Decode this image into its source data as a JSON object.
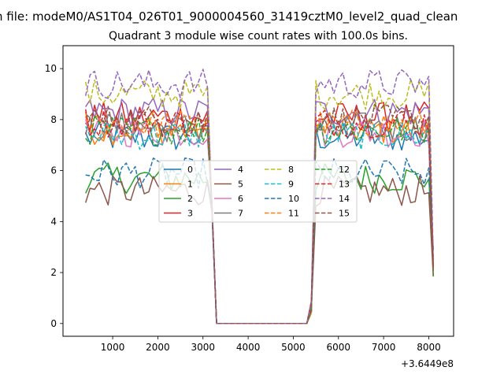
{
  "figure": {
    "suptitle": "n file: modeM0/AS1T04_026T01_9000004560_31419cztM0_level2_quad_clean"
  },
  "chart_data": {
    "type": "line",
    "title": "Quadrant 3 module wise count rates with 100.0s bins.",
    "xlabel": "",
    "ylabel": "",
    "x_offset_label": "+3.6449e8",
    "xlim": [
      -100,
      8550
    ],
    "ylim": [
      -0.5,
      10.9
    ],
    "xticks": [
      1000,
      2000,
      3000,
      4000,
      5000,
      6000,
      7000,
      8000
    ],
    "yticks": [
      0,
      2,
      4,
      6,
      8,
      10
    ],
    "grid": false,
    "legend_placement": "center",
    "legend_columns": 4,
    "series": [
      {
        "name": "0",
        "color": "#1f77b4",
        "style": "solid",
        "base": 7.3
      },
      {
        "name": "1",
        "color": "#ff7f0e",
        "style": "solid",
        "base": 7.6
      },
      {
        "name": "2",
        "color": "#2ca02c",
        "style": "solid",
        "base": 5.7
      },
      {
        "name": "3",
        "color": "#d62728",
        "style": "solid",
        "base": 8.1
      },
      {
        "name": "4",
        "color": "#9467bd",
        "style": "solid",
        "base": 8.3
      },
      {
        "name": "5",
        "color": "#8c564b",
        "style": "solid",
        "base": 5.2
      },
      {
        "name": "6",
        "color": "#e377c2",
        "style": "solid",
        "base": 7.5
      },
      {
        "name": "7",
        "color": "#7f7f7f",
        "style": "solid",
        "base": 7.7
      },
      {
        "name": "8",
        "color": "#bcbd22",
        "style": "dashed",
        "base": 9.0
      },
      {
        "name": "9",
        "color": "#17becf",
        "style": "dashed",
        "base": 7.4
      },
      {
        "name": "10",
        "color": "#1f77b4",
        "style": "dashed",
        "base": 5.9
      },
      {
        "name": "11",
        "color": "#ff7f0e",
        "style": "dashed",
        "base": 7.8
      },
      {
        "name": "12",
        "color": "#2ca02c",
        "style": "dashed",
        "base": 7.6
      },
      {
        "name": "13",
        "color": "#d62728",
        "style": "dashed",
        "base": 7.9
      },
      {
        "name": "14",
        "color": "#9467bd",
        "style": "dashed",
        "base": 9.4
      },
      {
        "name": "15",
        "color": "#8c564b",
        "style": "dashed",
        "base": 8.0
      }
    ],
    "time_profile": {
      "start": 400,
      "step": 100,
      "end": 8100,
      "active_segments": [
        [
          400,
          3100
        ],
        [
          5500,
          8000
        ]
      ],
      "transition_points": [
        [
          3200,
          4.5
        ],
        [
          3300,
          0
        ],
        [
          5300,
          0
        ],
        [
          5400,
          0.7
        ]
      ],
      "final_drop": [
        8100,
        2.4
      ]
    }
  }
}
